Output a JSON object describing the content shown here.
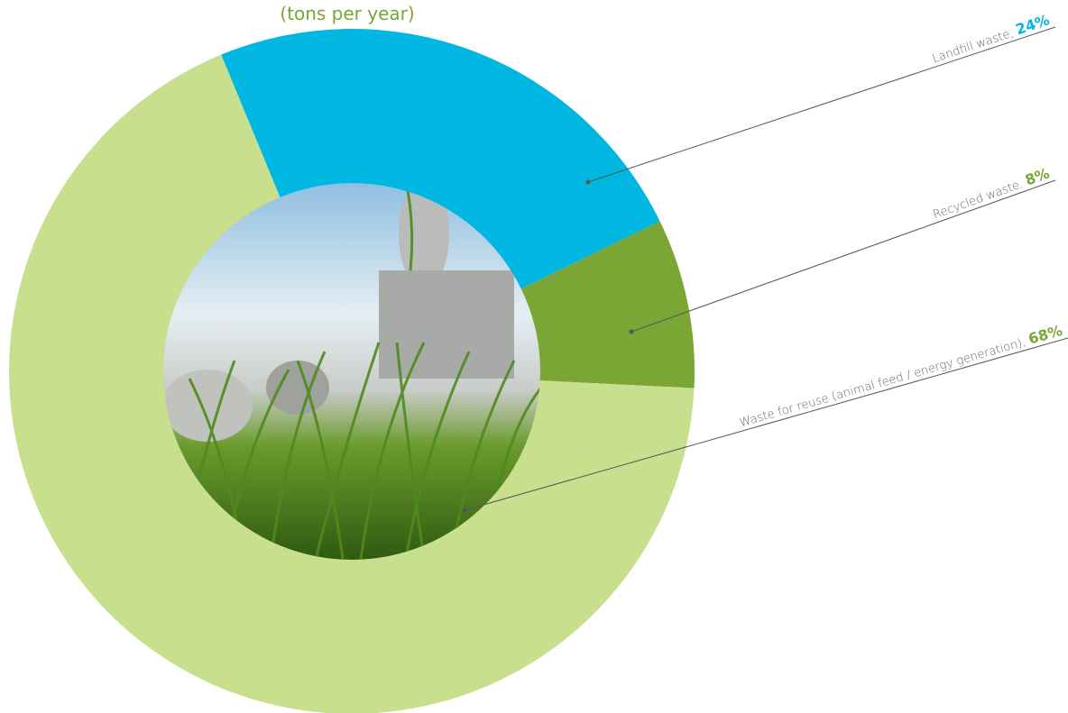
{
  "chart_data": {
    "type": "donut",
    "title": "(tons per year)",
    "categories": [
      "Landfill waste,",
      "Recycled waste,",
      "Waste for reuse (animal feed / energy generation),"
    ],
    "values": [
      24,
      8,
      68
    ],
    "value_labels": [
      "24%",
      "8%",
      "68%"
    ],
    "colors": [
      "#00b7e1",
      "#79a634",
      "#c8df8e"
    ],
    "label_colors": [
      "#00b7e1",
      "#79a634",
      "#79a634"
    ]
  }
}
